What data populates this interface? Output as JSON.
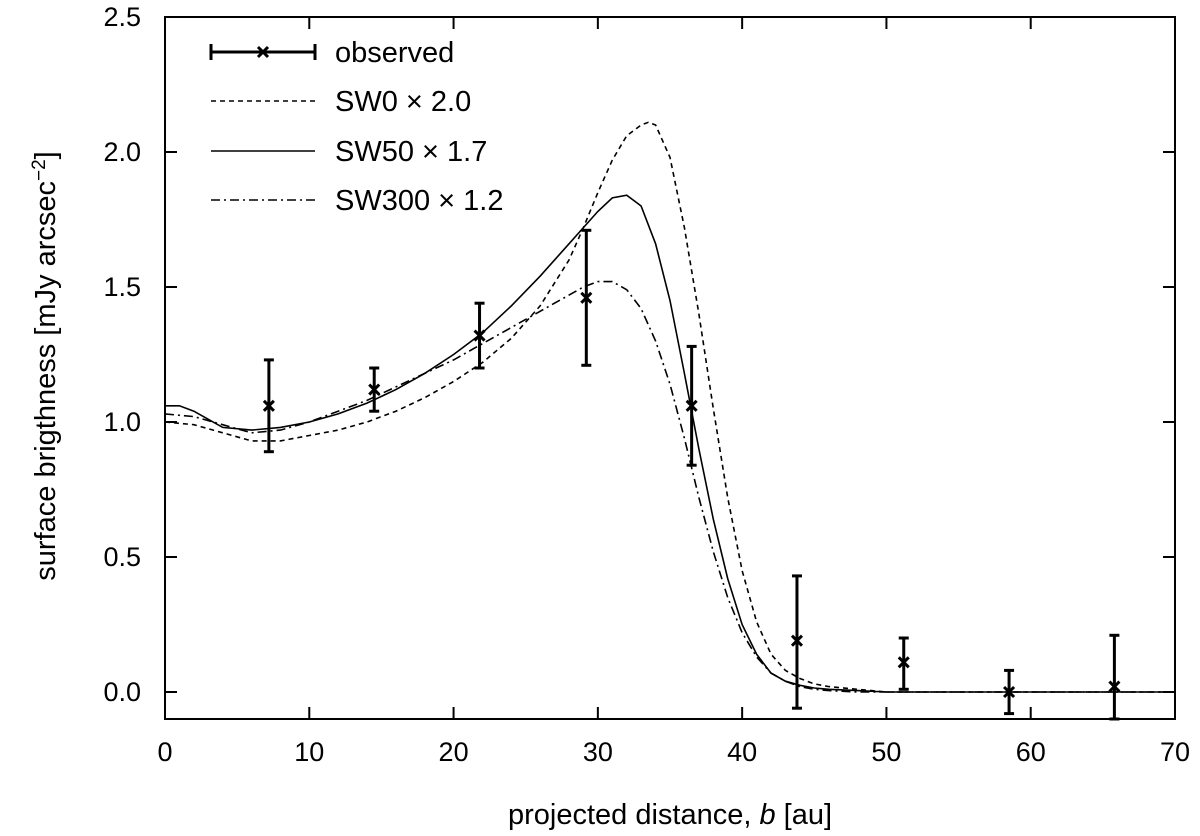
{
  "chart_data": {
    "type": "line",
    "title": "",
    "xlabel": {
      "prefix": "projected distance, ",
      "italic": "b",
      "suffix": " [au]"
    },
    "ylabel": {
      "main": "surface brigthness [mJy arcsec",
      "sup": "−2",
      "close": "]"
    },
    "xlim": [
      0,
      70
    ],
    "ylim": [
      -0.1,
      2.5
    ],
    "xticks": [
      0,
      10,
      20,
      30,
      40,
      50,
      60,
      70
    ],
    "xtick_labels": [
      "0",
      "10",
      "20",
      "30",
      "40",
      "50",
      "60",
      "70"
    ],
    "yticks": [
      0.0,
      0.5,
      1.0,
      1.5,
      2.0,
      2.5
    ],
    "ytick_labels": [
      "0.0",
      "0.5",
      "1.0",
      "1.5",
      "2.0",
      "2.5"
    ],
    "legend_position": "top-left",
    "observed": {
      "name": "observed",
      "x": [
        7.2,
        14.5,
        21.8,
        29.2,
        36.5,
        43.8,
        51.2,
        58.5,
        65.8
      ],
      "y": [
        1.06,
        1.12,
        1.32,
        1.46,
        1.06,
        0.19,
        0.11,
        0.0,
        0.02
      ],
      "yerr_low": [
        0.17,
        0.08,
        0.12,
        0.25,
        0.22,
        0.25,
        0.1,
        0.08,
        0.12
      ],
      "yerr_high": [
        0.17,
        0.08,
        0.12,
        0.25,
        0.22,
        0.24,
        0.09,
        0.08,
        0.19
      ]
    },
    "series": [
      {
        "name": "SW0 × 2.0",
        "style": "dashed",
        "x": [
          0,
          2,
          4,
          6,
          8,
          10,
          12,
          14,
          16,
          18,
          20,
          22,
          24,
          26,
          28,
          29,
          30,
          31,
          32,
          33,
          33.5,
          34,
          35,
          36,
          37,
          38,
          39,
          40,
          41,
          42,
          43,
          44,
          45,
          46,
          48,
          50,
          52,
          55,
          60,
          70
        ],
        "y": [
          1.0,
          0.99,
          0.96,
          0.93,
          0.93,
          0.95,
          0.97,
          1.0,
          1.04,
          1.09,
          1.15,
          1.22,
          1.31,
          1.43,
          1.6,
          1.72,
          1.85,
          1.97,
          2.06,
          2.1,
          2.11,
          2.1,
          1.98,
          1.72,
          1.4,
          1.05,
          0.72,
          0.45,
          0.26,
          0.14,
          0.08,
          0.05,
          0.03,
          0.02,
          0.01,
          0.0,
          0.0,
          0.0,
          0.0,
          0.0
        ]
      },
      {
        "name": "SW50 × 1.7",
        "style": "solid",
        "x": [
          0,
          1,
          2,
          3,
          4,
          6,
          8,
          10,
          12,
          14,
          16,
          18,
          20,
          22,
          24,
          26,
          28,
          29,
          30,
          31,
          32,
          33,
          34,
          35,
          36,
          37,
          38,
          39,
          40,
          41,
          42,
          43,
          44,
          45,
          46,
          48,
          50,
          52,
          55,
          60,
          70
        ],
        "y": [
          1.06,
          1.06,
          1.04,
          1.01,
          0.98,
          0.97,
          0.98,
          1.0,
          1.03,
          1.07,
          1.12,
          1.18,
          1.25,
          1.33,
          1.43,
          1.54,
          1.66,
          1.72,
          1.78,
          1.83,
          1.84,
          1.8,
          1.66,
          1.45,
          1.18,
          0.9,
          0.64,
          0.42,
          0.25,
          0.14,
          0.07,
          0.04,
          0.025,
          0.015,
          0.01,
          0.005,
          0.0,
          0.0,
          0.0,
          0.0,
          0.0
        ]
      },
      {
        "name": "SW300 × 1.2",
        "style": "dashdot",
        "x": [
          0,
          2,
          4,
          6,
          8,
          10,
          12,
          14,
          16,
          18,
          20,
          22,
          24,
          26,
          28,
          29,
          30,
          31,
          32,
          33,
          34,
          35,
          36,
          37,
          38,
          39,
          40,
          41,
          42,
          43,
          44,
          45,
          46,
          48,
          50,
          52,
          55,
          60,
          70
        ],
        "y": [
          1.03,
          1.02,
          0.99,
          0.96,
          0.97,
          1.0,
          1.04,
          1.08,
          1.13,
          1.18,
          1.23,
          1.29,
          1.35,
          1.41,
          1.47,
          1.5,
          1.52,
          1.52,
          1.49,
          1.42,
          1.3,
          1.14,
          0.94,
          0.72,
          0.52,
          0.35,
          0.22,
          0.13,
          0.07,
          0.04,
          0.02,
          0.01,
          0.005,
          0.0,
          0.0,
          0.0,
          0.0,
          0.0,
          0.0
        ]
      }
    ]
  }
}
